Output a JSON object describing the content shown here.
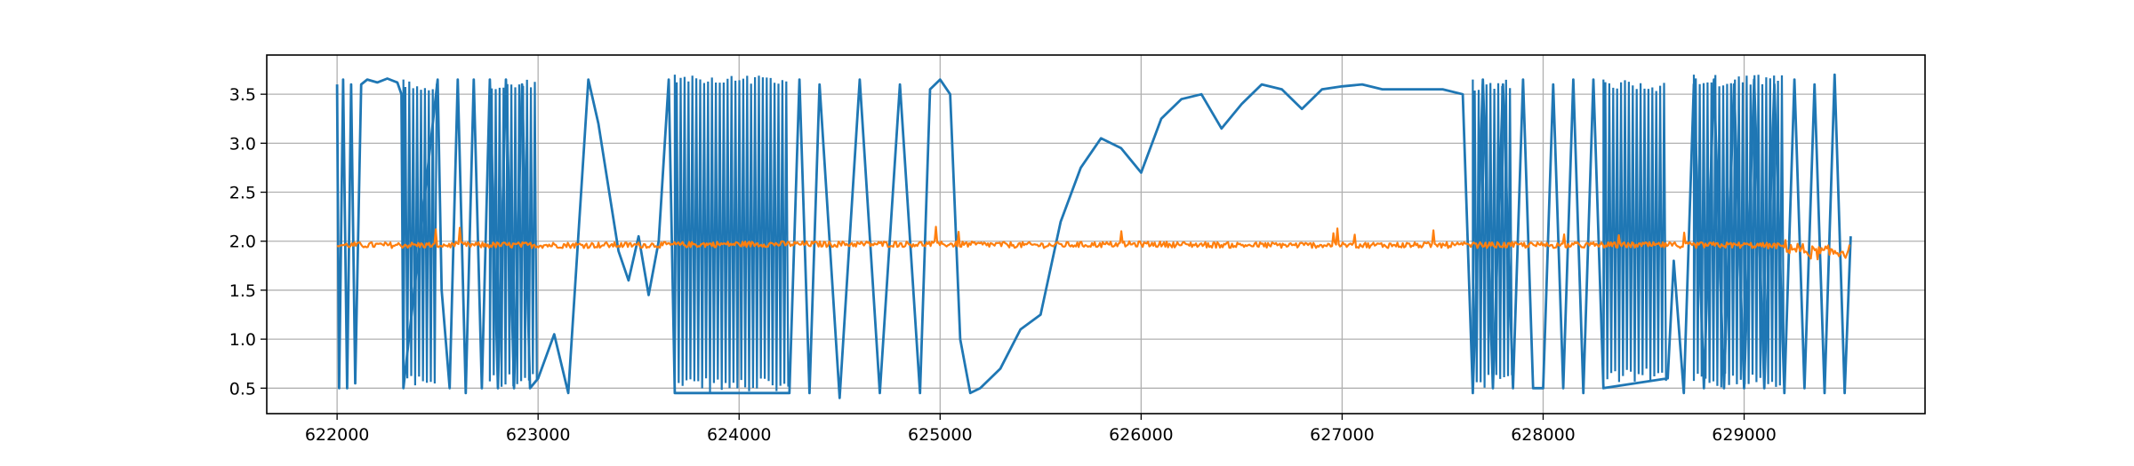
{
  "chart_data": {
    "type": "line",
    "title": "",
    "xlabel": "",
    "ylabel": "",
    "xlim": [
      621650,
      629900
    ],
    "ylim": [
      0.24,
      3.9
    ],
    "grid": true,
    "x_ticks": [
      622000,
      623000,
      624000,
      625000,
      626000,
      627000,
      628000,
      629000
    ],
    "y_ticks": [
      0.5,
      1.0,
      1.5,
      2.0,
      2.5,
      3.0,
      3.5
    ],
    "x_tick_labels": [
      "622000",
      "623000",
      "624000",
      "625000",
      "626000",
      "627000",
      "628000",
      "629000"
    ],
    "y_tick_labels": [
      "0.5",
      "1.0",
      "1.5",
      "2.0",
      "2.5",
      "3.0",
      "3.5"
    ],
    "colors": {
      "series_1": "#1f77b4",
      "series_2": "#ff7f0e",
      "grid": "#b0b0b0"
    },
    "series": [
      {
        "color": "#1f77b4",
        "x": [
          622000,
          622010,
          622030,
          622050,
          622070,
          622090,
          622120,
          622150,
          622200,
          622250,
          622300,
          622320,
          622330,
          622500,
          622520,
          622560,
          622600,
          622640,
          622680,
          622720,
          622760,
          622800,
          622840,
          622880,
          622920,
          622960,
          623000,
          623080,
          623150,
          623250,
          623300,
          623400,
          623450,
          623500,
          623550,
          623600,
          623650,
          623680,
          624250,
          624300,
          624350,
          624400,
          624500,
          624600,
          624700,
          624800,
          624900,
          624950,
          625000,
          625050,
          625100,
          625150,
          625200,
          625300,
          625400,
          625500,
          625600,
          625700,
          625800,
          625900,
          626000,
          626100,
          626200,
          626300,
          626400,
          626500,
          626600,
          626700,
          626800,
          626900,
          627000,
          627100,
          627200,
          627300,
          627400,
          627500,
          627600,
          627650,
          627700,
          627750,
          627800,
          627850,
          627900,
          627950,
          628000,
          628050,
          628100,
          628150,
          628200,
          628250,
          628300,
          628300,
          628620,
          628650,
          628700,
          628750,
          628800,
          628850,
          628900,
          628950,
          629000,
          629050,
          629100,
          629150,
          629200,
          629250,
          629300,
          629350,
          629400,
          629450,
          629500,
          629530
        ],
        "y": [
          3.6,
          0.5,
          3.65,
          0.5,
          3.6,
          0.55,
          3.6,
          3.65,
          3.62,
          3.66,
          3.62,
          3.5,
          0.5,
          3.65,
          1.5,
          0.5,
          3.65,
          0.45,
          3.65,
          0.5,
          3.65,
          0.5,
          3.65,
          0.5,
          3.6,
          0.5,
          0.6,
          1.05,
          0.45,
          3.65,
          3.2,
          1.9,
          1.6,
          2.05,
          1.45,
          2.0,
          3.65,
          0.45,
          0.45,
          3.65,
          0.45,
          3.6,
          0.4,
          3.65,
          0.45,
          3.6,
          0.45,
          3.55,
          3.65,
          3.5,
          1.0,
          0.45,
          0.5,
          0.7,
          1.1,
          1.25,
          2.2,
          2.75,
          3.05,
          2.95,
          2.7,
          3.25,
          3.45,
          3.5,
          3.15,
          3.4,
          3.6,
          3.55,
          3.35,
          3.55,
          3.58,
          3.6,
          3.55,
          3.55,
          3.55,
          3.55,
          3.5,
          0.45,
          3.65,
          0.5,
          3.6,
          0.5,
          3.65,
          0.5,
          0.5,
          3.6,
          0.5,
          3.65,
          0.45,
          3.65,
          0.5,
          0.5,
          0.6,
          1.8,
          0.45,
          3.6,
          0.5,
          3.65,
          0.5,
          3.6,
          0.5,
          3.65,
          0.5,
          3.6,
          0.45,
          3.65,
          0.5,
          3.6,
          0.45,
          3.7,
          0.45,
          2.05
        ]
      },
      {
        "color": "#ff7f0e",
        "x": [
          622000,
          622500,
          623000,
          623500,
          624000,
          624500,
          625000,
          625500,
          626000,
          626500,
          627000,
          627500,
          628000,
          628500,
          629000,
          629200,
          629350,
          629530
        ],
        "y": [
          1.96,
          1.96,
          1.96,
          1.96,
          1.97,
          1.97,
          1.97,
          1.96,
          1.97,
          1.96,
          1.96,
          1.96,
          1.96,
          1.96,
          1.96,
          1.95,
          1.88,
          1.9
        ]
      }
    ],
    "dense_oscillation_ranges": [
      {
        "x_start": 622330,
        "x_end": 622500,
        "y_low": 0.5,
        "y_high": 3.65
      },
      {
        "x_start": 622760,
        "x_end": 623000,
        "y_low": 0.5,
        "y_high": 3.65
      },
      {
        "x_start": 623680,
        "x_end": 624250,
        "y_low": 0.45,
        "y_high": 3.7
      },
      {
        "x_start": 627650,
        "x_end": 627850,
        "y_low": 0.5,
        "y_high": 3.65
      },
      {
        "x_start": 628300,
        "x_end": 628620,
        "y_low": 0.55,
        "y_high": 3.65
      },
      {
        "x_start": 628750,
        "x_end": 629200,
        "y_low": 0.5,
        "y_high": 3.7
      }
    ]
  }
}
